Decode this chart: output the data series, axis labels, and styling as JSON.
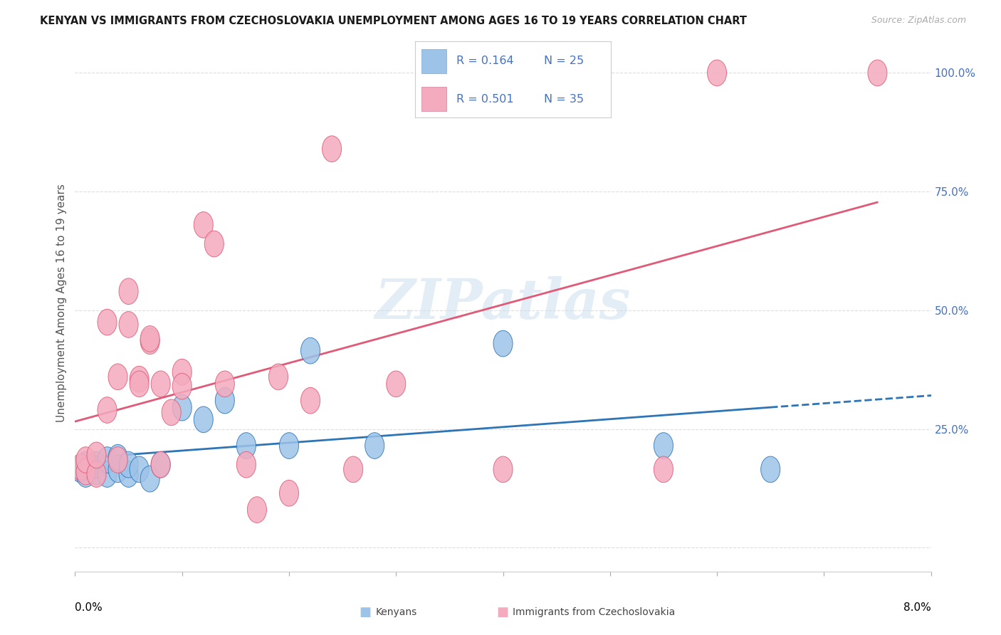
{
  "title": "KENYAN VS IMMIGRANTS FROM CZECHOSLOVAKIA UNEMPLOYMENT AMONG AGES 16 TO 19 YEARS CORRELATION CHART",
  "source": "Source: ZipAtlas.com",
  "ylabel": "Unemployment Among Ages 16 to 19 years",
  "xlim": [
    0.0,
    0.08
  ],
  "ylim": [
    -0.05,
    1.08
  ],
  "right_yticks": [
    0.25,
    0.5,
    0.75,
    1.0
  ],
  "right_yticklabels": [
    "25.0%",
    "50.0%",
    "75.0%",
    "100.0%"
  ],
  "grid_yticks": [
    0.0,
    0.25,
    0.5,
    0.75,
    1.0
  ],
  "kenyans_x": [
    0.0005,
    0.001,
    0.001,
    0.0015,
    0.002,
    0.002,
    0.003,
    0.003,
    0.004,
    0.004,
    0.005,
    0.005,
    0.006,
    0.007,
    0.008,
    0.01,
    0.012,
    0.014,
    0.016,
    0.02,
    0.022,
    0.028,
    0.04,
    0.055,
    0.065
  ],
  "kenyans_y": [
    0.165,
    0.175,
    0.155,
    0.17,
    0.16,
    0.175,
    0.155,
    0.185,
    0.165,
    0.19,
    0.155,
    0.175,
    0.165,
    0.145,
    0.175,
    0.295,
    0.27,
    0.31,
    0.215,
    0.215,
    0.415,
    0.215,
    0.43,
    0.215,
    0.165
  ],
  "czech_x": [
    0.0005,
    0.001,
    0.001,
    0.002,
    0.002,
    0.003,
    0.003,
    0.004,
    0.004,
    0.005,
    0.005,
    0.006,
    0.006,
    0.007,
    0.007,
    0.008,
    0.008,
    0.009,
    0.01,
    0.01,
    0.012,
    0.013,
    0.014,
    0.016,
    0.017,
    0.019,
    0.02,
    0.022,
    0.024,
    0.026,
    0.03,
    0.04,
    0.055,
    0.06,
    0.075
  ],
  "czech_y": [
    0.17,
    0.16,
    0.185,
    0.155,
    0.195,
    0.29,
    0.475,
    0.36,
    0.185,
    0.47,
    0.54,
    0.355,
    0.345,
    0.435,
    0.44,
    0.345,
    0.175,
    0.285,
    0.37,
    0.34,
    0.68,
    0.64,
    0.345,
    0.175,
    0.08,
    0.36,
    0.115,
    0.31,
    0.84,
    0.165,
    0.345,
    0.165,
    0.165,
    1.0,
    1.0
  ],
  "blue_color": "#9DC3E8",
  "pink_color": "#F4ABBE",
  "blue_line_color": "#2E75B6",
  "pink_line_color": "#E05A78",
  "legend_color": "#4472C4",
  "watermark_color": "#D6E8F7",
  "background_color": "#FFFFFF",
  "grid_color": "#DDDDDD"
}
